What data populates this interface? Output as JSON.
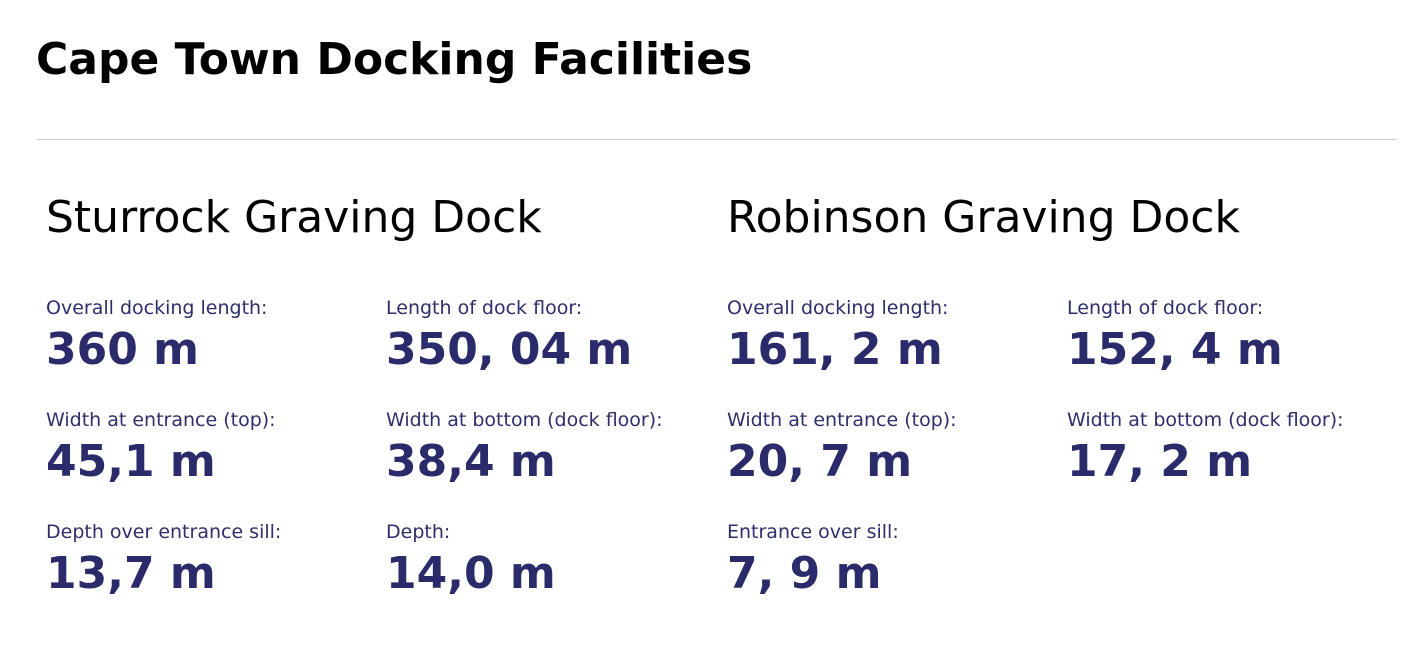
{
  "page": {
    "title": "Cape Town Docking Facilities"
  },
  "colors": {
    "heading": "#000000",
    "label": "#2e2e6b",
    "value": "#2b2b6b",
    "rule": "#cccccc",
    "background": "#ffffff"
  },
  "docks": [
    {
      "name": "Sturrock Graving Dock",
      "specs": [
        {
          "label": "Overall docking length:",
          "value": "360 m"
        },
        {
          "label": "Length of dock floor:",
          "value": "350, 04 m"
        },
        {
          "label": "Width at entrance (top):",
          "value": "45,1 m"
        },
        {
          "label": "Width at bottom (dock floor):",
          "value": "38,4 m"
        },
        {
          "label": "Depth over entrance sill:",
          "value": "13,7 m"
        },
        {
          "label": "Depth:",
          "value": "14,0 m"
        }
      ]
    },
    {
      "name": "Robinson Graving Dock",
      "specs": [
        {
          "label": "Overall docking length:",
          "value": "161, 2 m"
        },
        {
          "label": "Length of dock floor:",
          "value": "152, 4 m"
        },
        {
          "label": "Width at entrance (top):",
          "value": "20, 7 m"
        },
        {
          "label": "Width at bottom (dock floor):",
          "value": "17, 2 m"
        },
        {
          "label": "Entrance over sill:",
          "value": "7, 9 m"
        }
      ]
    }
  ]
}
